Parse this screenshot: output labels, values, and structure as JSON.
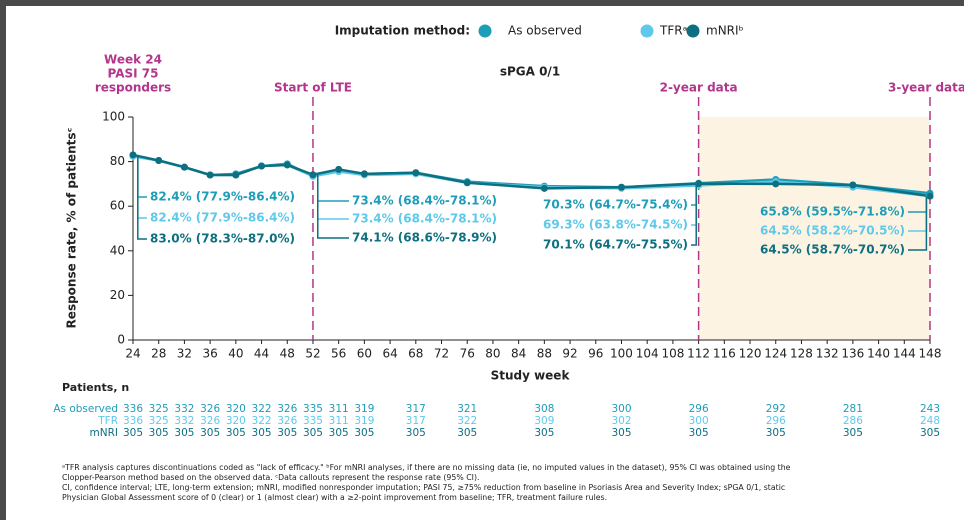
{
  "chart_data": {
    "type": "line",
    "title": "sPGA 0/1",
    "legend_title": "Imputation method:",
    "x_label": "Study week",
    "y_label": "Response rate, % of patientsᶜ",
    "x": [
      24,
      28,
      32,
      36,
      40,
      44,
      48,
      52,
      56,
      60,
      68,
      76,
      88,
      100,
      112,
      124,
      136,
      148
    ],
    "xlim": [
      24,
      148
    ],
    "xticks": [
      24,
      28,
      32,
      36,
      40,
      44,
      48,
      52,
      56,
      60,
      64,
      68,
      72,
      76,
      80,
      84,
      88,
      92,
      96,
      100,
      104,
      108,
      112,
      116,
      120,
      124,
      128,
      132,
      136,
      140,
      144,
      148
    ],
    "ylim": [
      0,
      100
    ],
    "yticks": [
      0,
      20,
      40,
      60,
      80,
      100
    ],
    "series": [
      {
        "name": "As observed",
        "color": "#1e9db8",
        "values": [
          82.4,
          80.5,
          77.5,
          74,
          74.5,
          78,
          79,
          73.4,
          76,
          74.5,
          75,
          71,
          69,
          68.5,
          70.3,
          72,
          69.5,
          65.8
        ],
        "value_labels": [
          "82.4% (77.9%-86.4%)",
          null,
          null,
          null,
          null,
          null,
          null,
          "73.4% (68.4%-78.1%)",
          null,
          null,
          null,
          null,
          null,
          null,
          "70.3% (64.7%-75.4%)",
          null,
          null,
          "65.8% (59.5%-71.8%)"
        ]
      },
      {
        "name": "TFRᵃ",
        "color": "#5ec9ea",
        "values": [
          82.4,
          80.5,
          77.5,
          74,
          74,
          78,
          78.5,
          73.4,
          75.5,
          74,
          74.5,
          70.5,
          68.5,
          68,
          69.3,
          71,
          68.5,
          64.5
        ],
        "value_labels": [
          "82.4% (77.9%-86.4%)",
          null,
          null,
          null,
          null,
          null,
          null,
          "73.4% (68.4%-78.1%)",
          null,
          null,
          null,
          null,
          null,
          null,
          "69.3% (63.8%-74.5%)",
          null,
          null,
          "64.5% (58.2%-70.5%)"
        ]
      },
      {
        "name": "mNRIᵇ",
        "color": "#0d6f80",
        "values": [
          83.0,
          80.5,
          77.5,
          74,
          74,
          78,
          78.5,
          74.1,
          76.5,
          74.5,
          75,
          70.5,
          68,
          68.5,
          70.1,
          70,
          69.5,
          64.5
        ],
        "value_labels": [
          "83.0% (78.3%-87.0%)",
          null,
          null,
          null,
          null,
          null,
          null,
          "74.1% (68.6%-78.9%)",
          null,
          null,
          null,
          null,
          null,
          null,
          "70.1% (64.7%-75.5%)",
          null,
          null,
          "64.5% (58.7%-70.7%)"
        ]
      }
    ],
    "milestones": [
      {
        "x": 24,
        "label": [
          "Week 24",
          "PASI 75",
          "responders"
        ]
      },
      {
        "x": 52,
        "label": [
          "Start of LTE"
        ]
      },
      {
        "x": 112,
        "label": [
          "2-year data"
        ]
      },
      {
        "x": 148,
        "label": [
          "3-year data"
        ]
      }
    ],
    "shaded_region": [
      112,
      148
    ],
    "patients": {
      "title": "Patients, n",
      "rows": [
        {
          "name": "As observed",
          "values": [
            "336",
            "325",
            "332",
            "326",
            "320",
            "322",
            "326",
            "335",
            "311",
            "319",
            "317",
            "321",
            "308",
            "300",
            "296",
            "292",
            "281",
            "243"
          ]
        },
        {
          "name": "TFR",
          "values": [
            "336",
            "325",
            "332",
            "326",
            "320",
            "322",
            "326",
            "335",
            "311",
            "319",
            "317",
            "322",
            "309",
            "302",
            "300",
            "296",
            "286",
            "248"
          ]
        },
        {
          "name": "mNRI",
          "values": [
            "305",
            "305",
            "305",
            "305",
            "305",
            "305",
            "305",
            "305",
            "305",
            "305",
            "305",
            "305",
            "305",
            "305",
            "305",
            "305",
            "305",
            "305"
          ]
        }
      ]
    },
    "footnotes": [
      "ᵃTFR analysis captures discontinuations coded as \"lack of efficacy.\" ᵇFor mNRI analyses, if there are no missing data (ie, no imputed values in the dataset), 95% CI was obtained using the",
      "Clopper-Pearson method based on the observed data. ᶜData callouts represent the response rate (95% CI).",
      "CI, confidence interval; LTE, long-term extension; mNRI, modified nonresponder imputation; PASI 75, ≥75% reduction from baseline in Psoriasis Area and Severity Index; sPGA 0/1, static",
      "Physician Global Assessment score of 0 (clear) or 1 (almost clear) with a ≥2-point improvement from baseline; TFR, treatment failure rules."
    ]
  }
}
